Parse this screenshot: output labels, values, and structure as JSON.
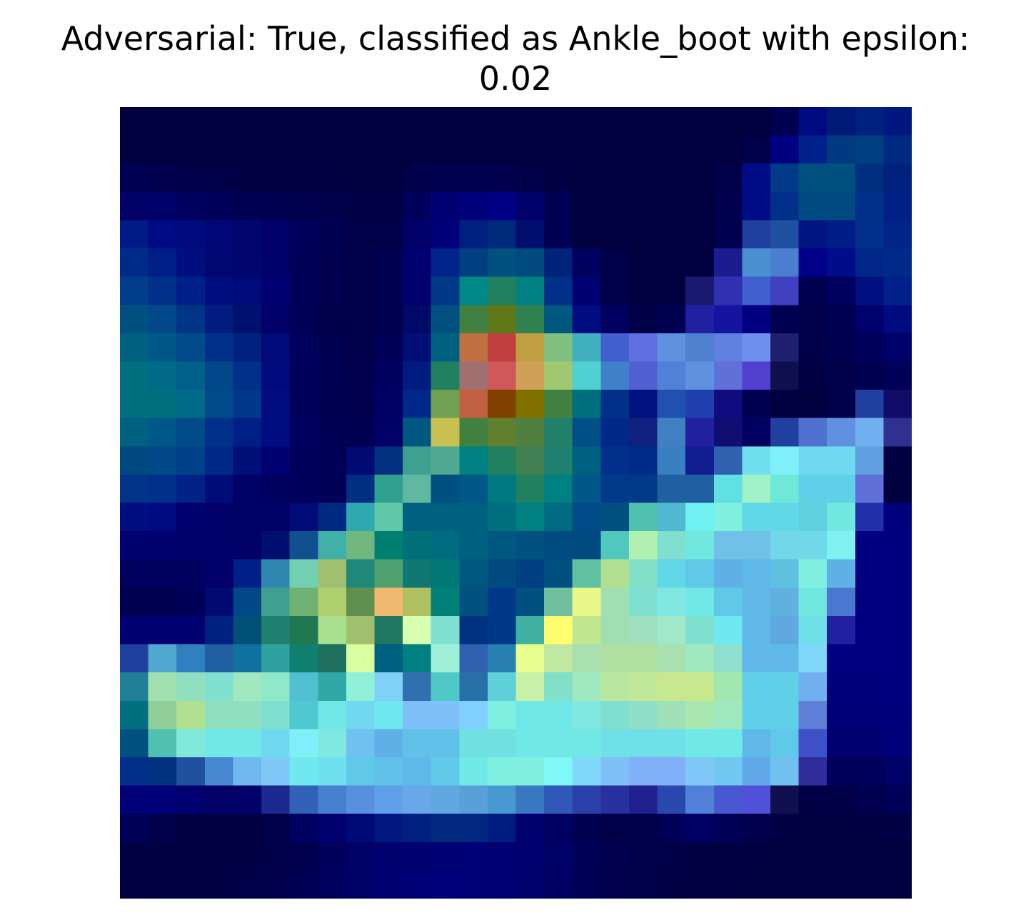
{
  "chart_data": {
    "type": "heatmap",
    "title_lines": [
      "Adversarial: True, classified as Ankle_boot with epsilon:",
      "0.02"
    ],
    "colormap": "jet (overlay on grayscale image)",
    "axes_visible": false,
    "grid": false,
    "legend": "none",
    "rows": 28,
    "cols": 28,
    "cells": [
      [
        "#00003f",
        "#00003f",
        "#00003f",
        "#00003f",
        "#00003f",
        "#00003f",
        "#00003f",
        "#00003f",
        "#00003f",
        "#00003f",
        "#00003f",
        "#00003f",
        "#00003f",
        "#00003f",
        "#00003f",
        "#00003f",
        "#00003f",
        "#00003f",
        "#00003f",
        "#00003f",
        "#00003f",
        "#00003f",
        "#00003f",
        "#000050",
        "#000a80",
        "#001a78",
        "#00207e",
        "#00177f"
      ],
      [
        "#00003f",
        "#00003f",
        "#00003f",
        "#00003f",
        "#00003f",
        "#00003f",
        "#00003f",
        "#00003f",
        "#00003f",
        "#00003f",
        "#00003f",
        "#00003f",
        "#00003f",
        "#00003f",
        "#00003f",
        "#00003f",
        "#00003f",
        "#00003f",
        "#00003f",
        "#00003f",
        "#00003f",
        "#00003f",
        "#000048",
        "#000080",
        "#00208a",
        "#003a80",
        "#004080",
        "#002a82"
      ],
      [
        "#000054",
        "#00004e",
        "#000049",
        "#000049",
        "#000045",
        "#000045",
        "#000045",
        "#000042",
        "#00003f",
        "#00003f",
        "#00004a",
        "#000052",
        "#000052",
        "#00004e",
        "#000048",
        "#000045",
        "#00003f",
        "#00003f",
        "#00003f",
        "#00003f",
        "#00003f",
        "#00004a",
        "#000c86",
        "#003a88",
        "#005080",
        "#005080",
        "#002f80",
        "#00227e"
      ],
      [
        "#000066",
        "#000068",
        "#00005e",
        "#00005a",
        "#000055",
        "#000052",
        "#00004f",
        "#00004a",
        "#000046",
        "#000046",
        "#00005c",
        "#000072",
        "#00007c",
        "#000086",
        "#000068",
        "#000055",
        "#00003f",
        "#00003f",
        "#00003f",
        "#00003f",
        "#00003f",
        "#00004f",
        "#000c86",
        "#00308a",
        "#004a84",
        "#004a82",
        "#00308a",
        "#001f86"
      ],
      [
        "#001a86",
        "#000a84",
        "#000a7c",
        "#000676",
        "#00066e",
        "#000068",
        "#00005c",
        "#000052",
        "#00004a",
        "#000048",
        "#000068",
        "#000078",
        "#00207f",
        "#002a7c",
        "#000e6e",
        "#000055",
        "#00003f",
        "#00003f",
        "#00003f",
        "#00003f",
        "#00003f",
        "#000050",
        "#2040a0",
        "#2050a0",
        "#001680",
        "#001c86",
        "#00308c",
        "#00248a"
      ],
      [
        "#002a8a",
        "#001f86",
        "#000e80",
        "#000672",
        "#00066e",
        "#00006a",
        "#000058",
        "#00004f",
        "#00004a",
        "#000050",
        "#000070",
        "#00248a",
        "#004080",
        "#005080",
        "#004a80",
        "#002278",
        "#000060",
        "#00004a",
        "#00003f",
        "#00003f",
        "#00003f",
        "#1c1c90",
        "#4a90d0",
        "#4a7fd0",
        "#00008a",
        "#000c8a",
        "#00268a",
        "#002a8a"
      ],
      [
        "#003c8a",
        "#00308a",
        "#002088",
        "#000e80",
        "#000a78",
        "#000070",
        "#000058",
        "#00004f",
        "#000048",
        "#000050",
        "#00006e",
        "#003888",
        "#008888",
        "#208060",
        "#008080",
        "#003088",
        "#000070",
        "#000048",
        "#000040",
        "#00003f",
        "#1a1a70",
        "#3030b0",
        "#4060d0",
        "#4040c0",
        "#000050",
        "#000060",
        "#001080",
        "#00208a"
      ],
      [
        "#005080",
        "#004888",
        "#003484",
        "#001c80",
        "#00106e",
        "#000068",
        "#000058",
        "#00004a",
        "#000048",
        "#000050",
        "#000868",
        "#005080",
        "#408040",
        "#607818",
        "#308050",
        "#005880",
        "#000c80",
        "#000060",
        "#000048",
        "#000050",
        "#2020a0",
        "#1414a0",
        "#000080",
        "#000050",
        "#00004a",
        "#000052",
        "#00006a",
        "#000a80"
      ],
      [
        "#006080",
        "#005888",
        "#004a8a",
        "#002f8a",
        "#00227e",
        "#000a78",
        "#00005e",
        "#000052",
        "#00004a",
        "#000058",
        "#000e76",
        "#006080",
        "#c07040",
        "#c04040",
        "#c0a040",
        "#80c080",
        "#40b0c0",
        "#4060d0",
        "#6070e0",
        "#6090e0",
        "#5080d0",
        "#6080e0",
        "#7090f0",
        "#202070",
        "#000048",
        "#000050",
        "#00005c",
        "#00006a"
      ],
      [
        "#007080",
        "#006a88",
        "#00608a",
        "#00488a",
        "#003088",
        "#000a7c",
        "#00005c",
        "#000054",
        "#00004f",
        "#000060",
        "#001c80",
        "#208060",
        "#a07070",
        "#d05858",
        "#d0a058",
        "#a0c870",
        "#50d0d0",
        "#4080c8",
        "#5060d0",
        "#5080d8",
        "#6090e0",
        "#6070d8",
        "#5040d0",
        "#101050",
        "#000045",
        "#00004a",
        "#000050",
        "#000058"
      ],
      [
        "#007080",
        "#007080",
        "#006a88",
        "#004a8a",
        "#00388a",
        "#000c80",
        "#00005c",
        "#000052",
        "#00004f",
        "#000064",
        "#002888",
        "#70a050",
        "#c06040",
        "#804000",
        "#807000",
        "#408040",
        "#007080",
        "#003088",
        "#001280",
        "#2050b0",
        "#2040b0",
        "#100c80",
        "#000050",
        "#000040",
        "#00003f",
        "#00004a",
        "#2040a0",
        "#100c68"
      ],
      [
        "#006080",
        "#005888",
        "#004a88",
        "#00308a",
        "#001f86",
        "#000c80",
        "#000060",
        "#000056",
        "#000052",
        "#000066",
        "#005880",
        "#c8c050",
        "#408040",
        "#608030",
        "#508040",
        "#208068",
        "#005088",
        "#002888",
        "#102080",
        "#4080c0",
        "#2020a0",
        "#100c70",
        "#000060",
        "#2040a0",
        "#5070d0",
        "#6090e0",
        "#70b0f0",
        "#303090"
      ],
      [
        "#004880",
        "#004888",
        "#00408a",
        "#002888",
        "#001078",
        "#000070",
        "#00005c",
        "#000058",
        "#000a70",
        "#00307f",
        "#40a090",
        "#50a890",
        "#008080",
        "#208060",
        "#408050",
        "#208070",
        "#006080",
        "#00308a",
        "#002a88",
        "#3880c0",
        "#101c90",
        "#3060b0",
        "#70e0f0",
        "#80f0f8",
        "#70d8f0",
        "#70d8f0",
        "#60a0e0",
        "#000040"
      ],
      [
        "#003488",
        "#002f8a",
        "#002286",
        "#000c78",
        "#000066",
        "#000060",
        "#00005c",
        "#000058",
        "#002e80",
        "#30a090",
        "#60b8a0",
        "#005080",
        "#005888",
        "#007880",
        "#208060",
        "#008080",
        "#005888",
        "#003a88",
        "#003a88",
        "#2060a0",
        "#2060a0",
        "#60e0e0",
        "#a0f0c8",
        "#70e8d8",
        "#60d0e8",
        "#60d0e8",
        "#6070d8",
        "#000040"
      ],
      [
        "#000e80",
        "#000a80",
        "#00006e",
        "#000068",
        "#000066",
        "#000066",
        "#000a78",
        "#002a80",
        "#30a8b0",
        "#60c8a8",
        "#006080",
        "#006080",
        "#006080",
        "#007080",
        "#008080",
        "#006a80",
        "#004a88",
        "#005080",
        "#50c0b0",
        "#50b8d0",
        "#70f0f0",
        "#80f0e0",
        "#60d8e8",
        "#60d8e8",
        "#60d0e0",
        "#70e8e0",
        "#2030a8",
        "#00007c"
      ],
      [
        "#00006e",
        "#00006e",
        "#000068",
        "#000068",
        "#000066",
        "#000e70",
        "#105090",
        "#40b0a8",
        "#70b880",
        "#008070",
        "#007078",
        "#006a80",
        "#006080",
        "#005880",
        "#005080",
        "#004a80",
        "#004a80",
        "#50c8c0",
        "#b0f0b0",
        "#80e0d0",
        "#70e8e0",
        "#70c0e8",
        "#70c0e8",
        "#70d8e8",
        "#70d8e8",
        "#80f0f0",
        "#000080",
        "#000080"
      ],
      [
        "#00005e",
        "#000060",
        "#00005e",
        "#000068",
        "#002088",
        "#3088b0",
        "#70d0b0",
        "#a0c070",
        "#208878",
        "#50a070",
        "#107870",
        "#007878",
        "#005880",
        "#004a80",
        "#004080",
        "#005080",
        "#60c0a0",
        "#b0e090",
        "#80e0c8",
        "#60d8e8",
        "#60c8e8",
        "#60b0e8",
        "#60b8e8",
        "#60c0e0",
        "#80f0e0",
        "#60b0e8",
        "#000080",
        "#000080"
      ],
      [
        "#000052",
        "#000052",
        "#000058",
        "#000a70",
        "#004888",
        "#40a090",
        "#70b070",
        "#b0d070",
        "#609050",
        "#f0b870",
        "#b0c060",
        "#008078",
        "#005080",
        "#003888",
        "#005080",
        "#70c0a0",
        "#e8f888",
        "#a0e0b0",
        "#80e0d0",
        "#80e8e0",
        "#70e8e8",
        "#60c8e8",
        "#60b8e8",
        "#60b0e0",
        "#70e8e0",
        "#4a78d0",
        "#000080",
        "#000080"
      ],
      [
        "#000070",
        "#000070",
        "#000070",
        "#002080",
        "#005078",
        "#208070",
        "#207850",
        "#a8e090",
        "#a0c070",
        "#207860",
        "#d8ffb0",
        "#80e0d0",
        "#003080",
        "#003888",
        "#40b0a0",
        "#ffff70",
        "#c0e890",
        "#a0e0b0",
        "#a0e0c0",
        "#a0e8c8",
        "#80e0d0",
        "#70e8f0",
        "#60b8e8",
        "#60a8e0",
        "#70e0e8",
        "#2020a0",
        "#000080",
        "#000080"
      ],
      [
        "#2040a0",
        "#50a8d0",
        "#3080c0",
        "#2060a0",
        "#1070a0",
        "#30a0a0",
        "#108070",
        "#207060",
        "#d8ffa0",
        "#006080",
        "#008080",
        "#a0f0d8",
        "#3060b0",
        "#2880b0",
        "#e8ff90",
        "#c0e8a0",
        "#a8e0b0",
        "#b0e0a0",
        "#b0e0a0",
        "#a8e0b0",
        "#a0e8c0",
        "#90e0d0",
        "#60b8e8",
        "#60b8e8",
        "#80d8f8",
        "#000080",
        "#000080",
        "#000080"
      ],
      [
        "#208098",
        "#a0e0b0",
        "#90e0c0",
        "#80e0d0",
        "#a0e8c0",
        "#90e8c8",
        "#50c0d0",
        "#30a8a8",
        "#90f0d8",
        "#80d0f8",
        "#3070b0",
        "#50c8c8",
        "#2870a8",
        "#60d0d8",
        "#c8f0a8",
        "#80e0c8",
        "#a0e8c0",
        "#b8e8a0",
        "#c0e898",
        "#c8e890",
        "#c8e890",
        "#a0e8b0",
        "#60d0e8",
        "#60d0e8",
        "#70b0f0",
        "#00007c",
        "#00007c",
        "#000080"
      ],
      [
        "#007080",
        "#90d098",
        "#b0e090",
        "#90e0c0",
        "#90e0c0",
        "#80e0d0",
        "#50c8d0",
        "#70e8e8",
        "#70d8f0",
        "#70e8f0",
        "#80c0f8",
        "#80c0f8",
        "#80d0ff",
        "#80f0e0",
        "#70e8e8",
        "#70e8e8",
        "#80e8e0",
        "#80e0d0",
        "#90e0c8",
        "#a0e0b8",
        "#a8e8b0",
        "#a0e8c0",
        "#60d0e8",
        "#60d0e8",
        "#6080d8",
        "#000078",
        "#000078",
        "#00007c"
      ],
      [
        "#005080",
        "#50c0b0",
        "#80e8d8",
        "#70e8e8",
        "#70e8e8",
        "#70d8f0",
        "#80f0f8",
        "#80e8e0",
        "#70c0f0",
        "#60b0e8",
        "#60c0e8",
        "#60c0e8",
        "#70e0e0",
        "#70e0e0",
        "#70e8e8",
        "#70e8e8",
        "#70e8e8",
        "#70e0e8",
        "#70e0e8",
        "#70e0e8",
        "#70e8e8",
        "#70e8e8",
        "#60b8e8",
        "#60c8e8",
        "#4050c8",
        "#000070",
        "#000070",
        "#000078"
      ],
      [
        "#002e88",
        "#003080",
        "#2050a0",
        "#4888d0",
        "#70b8f0",
        "#80c8f8",
        "#70e8f0",
        "#70e0f0",
        "#60c8e8",
        "#60c0e8",
        "#60b8e8",
        "#60c8e8",
        "#70e8e8",
        "#80f0e0",
        "#80f0e0",
        "#80f8f8",
        "#80d8f8",
        "#80c0f8",
        "#80b0f8",
        "#80b0f8",
        "#80c8f8",
        "#70c8f0",
        "#60a8e8",
        "#70c0f0",
        "#302c9c",
        "#00005c",
        "#00005c",
        "#000066"
      ],
      [
        "#000078",
        "#000078",
        "#000070",
        "#000066",
        "#000068",
        "#1a2890",
        "#3060b8",
        "#4880d0",
        "#5890e0",
        "#60a0e8",
        "#68a8e8",
        "#60a8e0",
        "#58a0d8",
        "#4898d0",
        "#3878c0",
        "#3058b8",
        "#2840a8",
        "#2830a0",
        "#202090",
        "#2848b0",
        "#5080d8",
        "#4858d0",
        "#5050d8",
        "#101050",
        "#000045",
        "#000048",
        "#00004f",
        "#000058"
      ],
      [
        "#000058",
        "#00004a",
        "#000045",
        "#000042",
        "#000042",
        "#000048",
        "#000060",
        "#00006e",
        "#000a76",
        "#001880",
        "#00207f",
        "#00287f",
        "#00287f",
        "#001c7e",
        "#00006e",
        "#000062",
        "#000052",
        "#000048",
        "#000048",
        "#000058",
        "#000064",
        "#000058",
        "#00004c",
        "#000042",
        "#00003f",
        "#000040",
        "#000042",
        "#000045"
      ],
      [
        "#000045",
        "#000045",
        "#000042",
        "#000042",
        "#000045",
        "#000048",
        "#00004f",
        "#00005c",
        "#000066",
        "#00006e",
        "#000070",
        "#000074",
        "#000076",
        "#000072",
        "#000070",
        "#000066",
        "#000058",
        "#00004e",
        "#00004a",
        "#000048",
        "#000045",
        "#000042",
        "#000042",
        "#00003f",
        "#00003f",
        "#00003f",
        "#00003f",
        "#00003f"
      ],
      [
        "#000042",
        "#000045",
        "#000045",
        "#000045",
        "#000048",
        "#00004c",
        "#000056",
        "#00005e",
        "#000066",
        "#000070",
        "#000076",
        "#00007a",
        "#000076",
        "#000074",
        "#00006c",
        "#000062",
        "#000056",
        "#00004c",
        "#000048",
        "#000045",
        "#000042",
        "#000042",
        "#00003f",
        "#00003f",
        "#00003f",
        "#00003f",
        "#00003f",
        "#00003f"
      ]
    ]
  }
}
